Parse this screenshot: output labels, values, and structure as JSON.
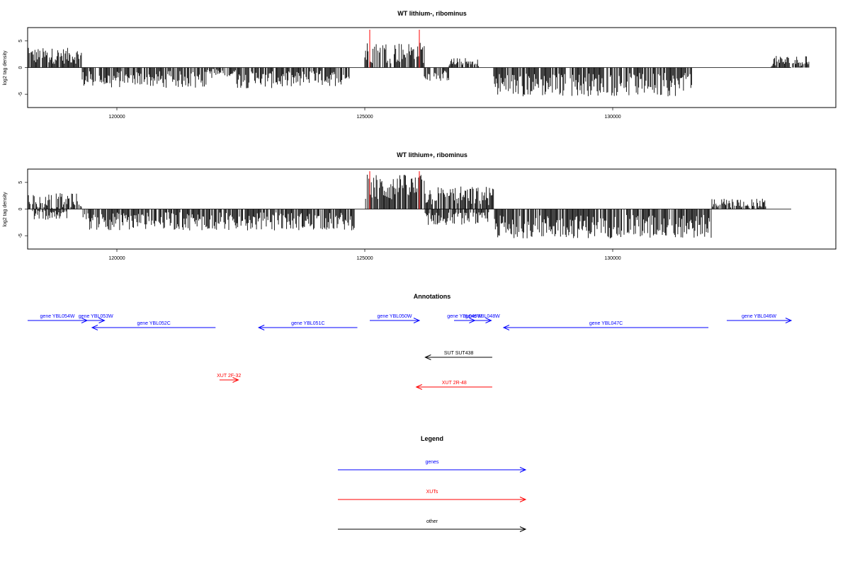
{
  "chart_data": [
    {
      "type": "bar",
      "title": "WT lithium-, ribominus",
      "ylabel": "log2 tag density",
      "xlabel": "",
      "xlim": [
        118200,
        134500
      ],
      "ylim": [
        -7.5,
        7.5
      ],
      "xticks": [
        120000,
        125000,
        130000
      ],
      "yticks": [
        -5,
        0,
        5
      ],
      "markers": [
        125100,
        126100
      ],
      "segments": [
        {
          "from": 118200,
          "to": 119300,
          "mean": 2.2,
          "amp": 1.5,
          "sign": 1
        },
        {
          "from": 119300,
          "to": 121800,
          "mean": -2.2,
          "amp": 1.6,
          "sign": -1
        },
        {
          "from": 121800,
          "to": 122400,
          "mean": -1.0,
          "amp": 1.0,
          "sign": -1
        },
        {
          "from": 122400,
          "to": 123700,
          "mean": -2.3,
          "amp": 1.6,
          "sign": -1
        },
        {
          "from": 123700,
          "to": 124700,
          "mean": -2.0,
          "amp": 1.5,
          "sign": -1
        },
        {
          "from": 125000,
          "to": 126200,
          "mean": 2.8,
          "amp": 2.0,
          "sign": 1
        },
        {
          "from": 126200,
          "to": 126700,
          "mean": -1.5,
          "amp": 1.0,
          "sign": -1
        },
        {
          "from": 126700,
          "to": 127300,
          "mean": 0.8,
          "amp": 1.0,
          "sign": 1
        },
        {
          "from": 127600,
          "to": 131600,
          "mean": -3.2,
          "amp": 2.2,
          "sign": -1
        },
        {
          "from": 133200,
          "to": 134000,
          "mean": 1.2,
          "amp": 1.0,
          "sign": 1
        }
      ]
    },
    {
      "type": "bar",
      "title": "WT lithium+, ribominus",
      "ylabel": "log2 tag density",
      "xlabel": "",
      "xlim": [
        118200,
        134500
      ],
      "ylim": [
        -7.5,
        7.5
      ],
      "xticks": [
        120000,
        125000,
        130000
      ],
      "yticks": [
        -5,
        0,
        5
      ],
      "markers": [
        125100,
        126100
      ],
      "segments": [
        {
          "from": 118200,
          "to": 119300,
          "mean": 1.5,
          "amp": 1.5,
          "sign": 1
        },
        {
          "from": 118300,
          "to": 119000,
          "mean": -1.0,
          "amp": 1.0,
          "sign": -1
        },
        {
          "from": 119300,
          "to": 124800,
          "mean": -2.3,
          "amp": 1.7,
          "sign": -1
        },
        {
          "from": 125000,
          "to": 126200,
          "mean": 4.0,
          "amp": 2.5,
          "sign": 1
        },
        {
          "from": 126200,
          "to": 127600,
          "mean": 2.5,
          "amp": 1.8,
          "sign": 1
        },
        {
          "from": 126200,
          "to": 127500,
          "mean": -1.8,
          "amp": 1.2,
          "sign": -1
        },
        {
          "from": 127600,
          "to": 132000,
          "mean": -3.3,
          "amp": 2.2,
          "sign": -1
        },
        {
          "from": 132000,
          "to": 133100,
          "mean": 1.0,
          "amp": 1.0,
          "sign": 1
        }
      ]
    }
  ],
  "annotations": {
    "title": "Annotations",
    "features": [
      {
        "label": "gene YBL054W",
        "start": 118200,
        "end": 119400,
        "strand": "+",
        "kind": "gene",
        "row": 0
      },
      {
        "label": "gene YBL053W",
        "start": 119400,
        "end": 119750,
        "strand": "+",
        "kind": "gene",
        "row": 0
      },
      {
        "label": "gene YBL052C",
        "start": 119500,
        "end": 121990,
        "strand": "-",
        "kind": "gene",
        "row": 1
      },
      {
        "label": "gene YBL051C",
        "start": 122860,
        "end": 124850,
        "strand": "-",
        "kind": "gene",
        "row": 1
      },
      {
        "label": "gene YBL050W",
        "start": 125100,
        "end": 126100,
        "strand": "+",
        "kind": "gene",
        "row": 0
      },
      {
        "label": "gene YBL049W",
        "start": 126800,
        "end": 127220,
        "strand": "+",
        "kind": "gene",
        "row": 0
      },
      {
        "label": "gene YBL048W",
        "start": 127200,
        "end": 127550,
        "strand": "+",
        "kind": "gene",
        "row": 0
      },
      {
        "label": "gene YBL047C",
        "start": 127800,
        "end": 131930,
        "strand": "-",
        "kind": "gene",
        "row": 1
      },
      {
        "label": "gene YBL046W",
        "start": 132300,
        "end": 133600,
        "strand": "+",
        "kind": "gene",
        "row": 0
      },
      {
        "label": "SUT SUT438",
        "start": 126220,
        "end": 127570,
        "strand": "-",
        "kind": "other",
        "row": 2
      },
      {
        "label": "XUT 2F-32",
        "start": 122070,
        "end": 122450,
        "strand": "+",
        "kind": "xut",
        "row": 3
      },
      {
        "label": "XUT 2R-48",
        "start": 126040,
        "end": 127570,
        "strand": "-",
        "kind": "xut",
        "row": 4
      }
    ]
  },
  "legend": {
    "title": "Legend",
    "items": [
      {
        "label": "genes",
        "kind": "gene"
      },
      {
        "label": "XUTs",
        "kind": "xut"
      },
      {
        "label": "other",
        "kind": "other"
      }
    ]
  },
  "colors": {
    "gene": "#0000ff",
    "xut": "#ff0000",
    "other": "#000000",
    "bars": "#000000",
    "marker": "#ff0000"
  }
}
